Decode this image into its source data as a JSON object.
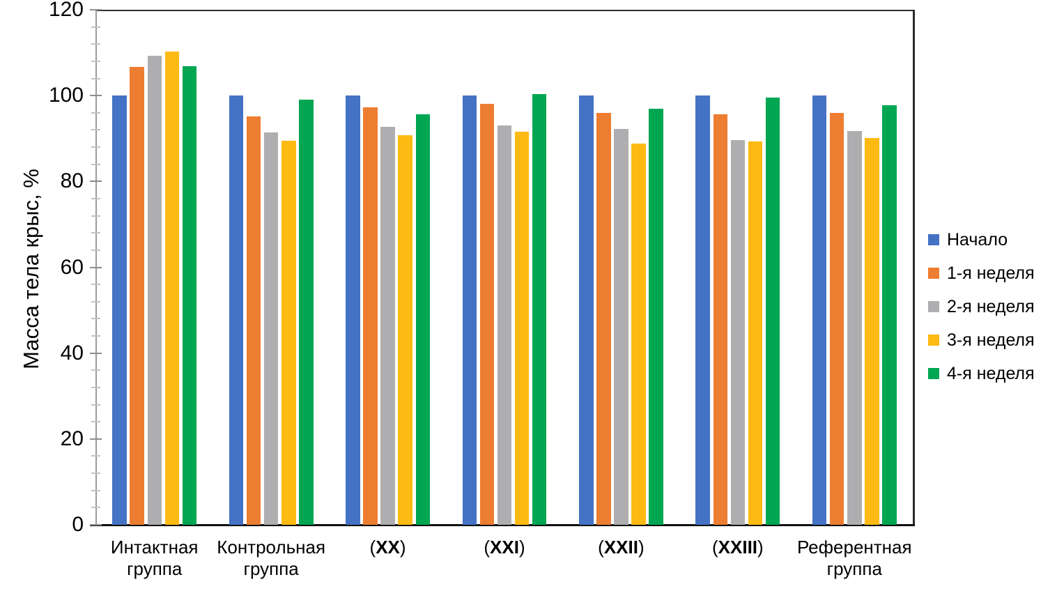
{
  "chart_data": {
    "type": "bar",
    "title": "",
    "xlabel": "",
    "ylabel": "Масса тела крыс, %",
    "ylim": [
      0,
      120
    ],
    "ytick_step": 20,
    "yminor_step": 4,
    "yticks": [
      0,
      20,
      40,
      60,
      80,
      100,
      120
    ],
    "grid": false,
    "legend_position": "right",
    "categories": [
      "Интактная группа",
      "Контрольная группа",
      "(XX)",
      "(XXI)",
      "(XXII)",
      "(XXIII)",
      "Референтная группа"
    ],
    "categories_display": [
      {
        "lines": [
          "Интактная",
          "группа"
        ]
      },
      {
        "lines": [
          "Контрольная",
          "группа"
        ]
      },
      {
        "prefix": "(",
        "roman": "XX",
        "suffix": ")"
      },
      {
        "prefix": "(",
        "roman": "XXI",
        "suffix": ")"
      },
      {
        "prefix": "(",
        "roman": "XXII",
        "suffix": ")"
      },
      {
        "prefix": "(",
        "roman": "XXIII",
        "suffix": ")"
      },
      {
        "lines": [
          "Референтная",
          "группа"
        ]
      }
    ],
    "series": [
      {
        "name": "Начало",
        "color": "#4472C4",
        "values": [
          100,
          100,
          100,
          100,
          100,
          100,
          100
        ]
      },
      {
        "name": "1-я неделя",
        "color": "#ED7D31",
        "values": [
          106.7,
          95.2,
          97.2,
          98.1,
          96.0,
          95.6,
          95.9
        ]
      },
      {
        "name": "2-я неделя",
        "color": "#AEAEB1",
        "values": [
          109.3,
          91.5,
          92.7,
          93.0,
          92.3,
          89.7,
          91.7
        ]
      },
      {
        "name": "3-я неделя",
        "color": "#FDBA12",
        "values": [
          110.3,
          89.5,
          90.8,
          91.6,
          88.9,
          89.3,
          90.1
        ]
      },
      {
        "name": "4-я неделя",
        "color": "#00A651",
        "values": [
          106.9,
          99.0,
          95.7,
          100.4,
          97.0,
          99.6,
          97.8
        ]
      }
    ],
    "axis_colors": {
      "frame": "#2b2b2b",
      "x_axis": "#101010",
      "y_axis": "#9b9b9b",
      "major_tick": "#8c8c8c",
      "minor_tick": "#c2c2c2"
    }
  }
}
